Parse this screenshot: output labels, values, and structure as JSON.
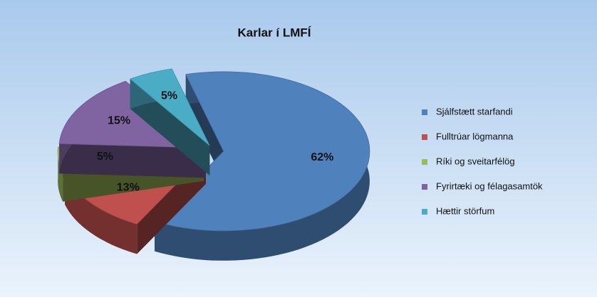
{
  "chart_data": {
    "type": "pie",
    "title": "Karlar í LMFÍ",
    "categories": [
      "Sjálfstætt starfandi",
      "Fulltrúar lögmanna",
      "Ríki og sveitarfélög",
      "Fyrirtæki og félagasamtök",
      "Hættir störfum"
    ],
    "values": [
      62,
      13,
      5,
      15,
      5
    ],
    "value_labels": [
      "62%",
      "13%",
      "5%",
      "15%",
      "5%"
    ],
    "colors": [
      "#4f81bd",
      "#c0504d",
      "#9bbb59",
      "#8064a2",
      "#4bacc6"
    ],
    "legend": "right"
  }
}
